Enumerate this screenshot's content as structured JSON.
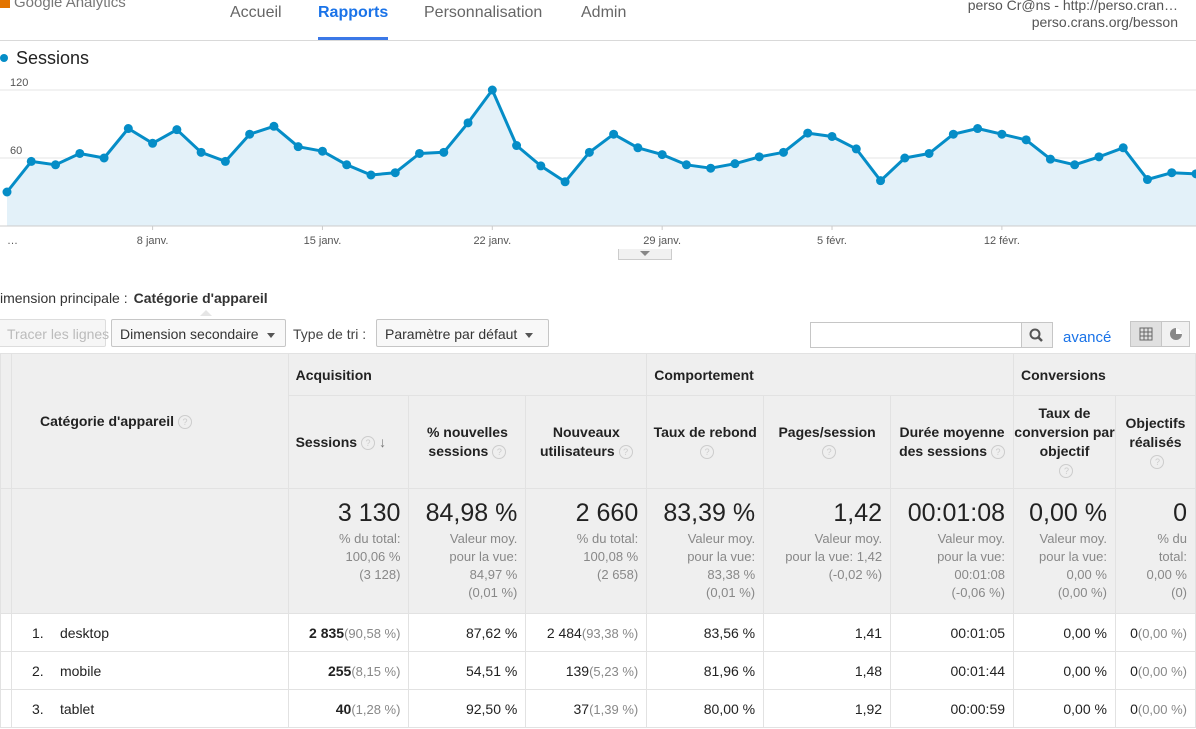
{
  "nav": {
    "logo": "Google Analytics",
    "tabs": [
      "Accueil",
      "Rapports",
      "Personnalisation",
      "Admin"
    ],
    "active_tab": "Rapports",
    "account_name": "perso Cr@ns - http://perso.cran…",
    "account_url": "perso.crans.org/besson"
  },
  "chart": {
    "legend": "Sessions",
    "color": "#058dc7",
    "fill": "#e3f1f9",
    "y_ticks": [
      "120",
      "60"
    ],
    "x_ticks": [
      "…",
      "8 janv.",
      "15 janv.",
      "22 janv.",
      "29 janv.",
      "5 févr.",
      "12 févr."
    ]
  },
  "chart_data": {
    "type": "area",
    "series": [
      {
        "name": "Sessions",
        "values": [
          30,
          57,
          54,
          64,
          60,
          86,
          73,
          85,
          65,
          57,
          81,
          88,
          70,
          66,
          54,
          45,
          47,
          64,
          65,
          91,
          120,
          71,
          53,
          39,
          65,
          81,
          69,
          63,
          54,
          51,
          55,
          61,
          65,
          82,
          79,
          68,
          40,
          60,
          64,
          81,
          86,
          81,
          76,
          59,
          54,
          61,
          69,
          41,
          47,
          46
        ]
      }
    ],
    "x_first": "2 janv.",
    "x_tick_indices": [
      0,
      6,
      13,
      20,
      27,
      34,
      41
    ],
    "ylim": [
      0,
      120
    ],
    "grid": true
  },
  "dimension": {
    "label": "imension principale :",
    "value": "Catégorie d'appareil"
  },
  "toolbar": {
    "trace": "Tracer les lignes",
    "secondary": "Dimension secondaire",
    "sort_label": "Type de tri :",
    "sort_value": "Paramètre par défaut",
    "search_placeholder": "",
    "advanced": "avancé"
  },
  "table": {
    "groups": [
      "Acquisition",
      "Comportement",
      "Conversions"
    ],
    "dimension_header": "Catégorie d'appareil",
    "columns": [
      "Sessions",
      "% nouvelles sessions",
      "Nouveaux utilisateurs",
      "Taux de rebond",
      "Pages/session",
      "Durée moyenne des sessions",
      "Taux de conversion par objectif",
      "Objectifs réalisés"
    ],
    "totals": [
      {
        "big": "3 130",
        "sub": [
          "% du total:",
          "100,06 %",
          "(3 128)"
        ]
      },
      {
        "big": "84,98 %",
        "sub": [
          "Valeur moy.",
          "pour la vue:",
          "84,97 %",
          "(0,01 %)"
        ]
      },
      {
        "big": "2 660",
        "sub": [
          "% du total:",
          "100,08 %",
          "(2 658)"
        ]
      },
      {
        "big": "83,39 %",
        "sub": [
          "Valeur moy.",
          "pour la vue:",
          "83,38 %",
          "(0,01 %)"
        ]
      },
      {
        "big": "1,42",
        "sub": [
          "Valeur moy.",
          "pour la vue: 1,42",
          "(-0,02 %)"
        ]
      },
      {
        "big": "00:01:08",
        "sub": [
          "Valeur moy.",
          "pour la vue:",
          "00:01:08",
          "(-0,06 %)"
        ]
      },
      {
        "big": "0,00 %",
        "sub": [
          "Valeur moy.",
          "pour la vue:",
          "0,00 %",
          "(0,00 %)"
        ]
      },
      {
        "big": "0",
        "sub": [
          "% du",
          "total:",
          "0,00 %",
          "(0)"
        ]
      }
    ],
    "rows": [
      {
        "idx": "1.",
        "name": "desktop",
        "sessions": "2 835",
        "sessions_pct": "(90,58 %)",
        "new_pct": "87,62 %",
        "new_users": "2 484",
        "new_users_pct": "(93,38 %)",
        "bounce": "83,56 %",
        "pages": "1,41",
        "duration": "00:01:05",
        "conv": "0,00 %",
        "goals": "0",
        "goals_pct": "(0,00 %)"
      },
      {
        "idx": "2.",
        "name": "mobile",
        "sessions": "255",
        "sessions_pct": "(8,15 %)",
        "new_pct": "54,51 %",
        "new_users": "139",
        "new_users_pct": "(5,23 %)",
        "bounce": "81,96 %",
        "pages": "1,48",
        "duration": "00:01:44",
        "conv": "0,00 %",
        "goals": "0",
        "goals_pct": "(0,00 %)"
      },
      {
        "idx": "3.",
        "name": "tablet",
        "sessions": "40",
        "sessions_pct": "(1,28 %)",
        "new_pct": "92,50 %",
        "new_users": "37",
        "new_users_pct": "(1,39 %)",
        "bounce": "80,00 %",
        "pages": "1,92",
        "duration": "00:00:59",
        "conv": "0,00 %",
        "goals": "0",
        "goals_pct": "(0,00 %)"
      }
    ]
  }
}
